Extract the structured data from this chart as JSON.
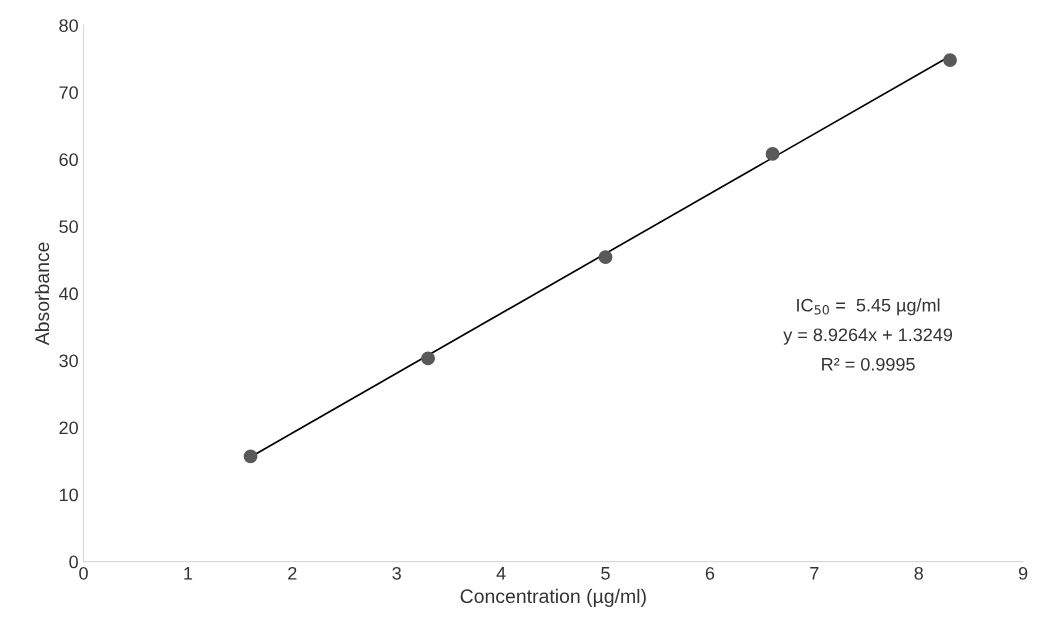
{
  "chart_data": {
    "type": "scatter",
    "xlabel": "Concentration (µg/ml)",
    "ylabel": "Absorbance",
    "xlim": [
      0,
      9
    ],
    "ylim": [
      0,
      80
    ],
    "xticks": [
      0,
      1,
      2,
      3,
      4,
      5,
      6,
      7,
      8,
      9
    ],
    "yticks": [
      0,
      10,
      20,
      30,
      40,
      50,
      60,
      70,
      80
    ],
    "grid": false,
    "marker": "circle",
    "series": [
      {
        "color": "#595959",
        "x": [
          1.6,
          3.3,
          5.0,
          6.6,
          8.3
        ],
        "values": [
          15.7,
          30.3,
          45.4,
          60.8,
          74.8
        ]
      },
      {
        "type": "line",
        "color": "#000000",
        "x": [
          1.6,
          8.3
        ],
        "values": [
          15.6,
          75.4
        ],
        "marker": "none",
        "line_style": "solid"
      }
    ],
    "annotations": [
      "IC$_{50}$ =  5.45 µg/ml",
      "y = 8.9264x + 1.3249",
      "R² = 0.9995"
    ]
  }
}
